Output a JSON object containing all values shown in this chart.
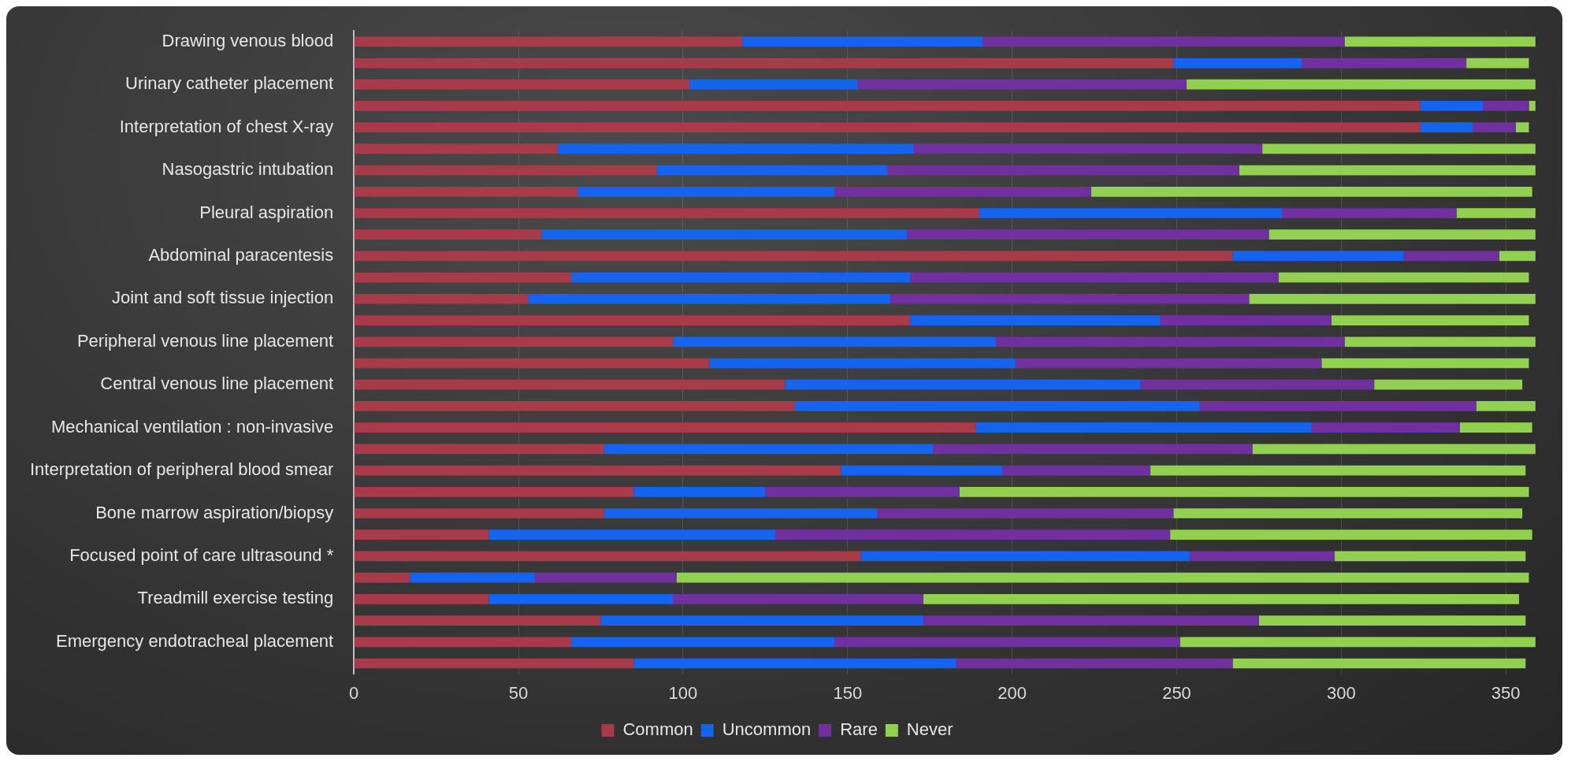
{
  "chart_data": {
    "type": "bar",
    "orientation": "horizontal",
    "stacked": true,
    "categories": [
      "Drawing venous blood",
      null,
      "Urinary catheter placement",
      null,
      "Interpretation of chest X-ray",
      null,
      "Nasogastric intubation",
      null,
      "Pleural aspiration",
      null,
      "Abdominal paracentesis",
      null,
      "Joint and soft tissue injection",
      null,
      "Peripheral venous line placement",
      null,
      "Central venous line placement",
      null,
      "Mechanical ventilation : non-invasive",
      null,
      "Interpretation of peripheral blood smear",
      null,
      "Bone marrow aspiration/biopsy",
      null,
      "Focused point of care ultrasound *",
      null,
      "Treadmill exercise testing",
      null,
      "Emergency endotracheal placement",
      null
    ],
    "series": [
      {
        "name": "Common",
        "color": "#a93a4a",
        "values": [
          118,
          249,
          102,
          324,
          324,
          62,
          92,
          68,
          190,
          57,
          267,
          66,
          53,
          169,
          97,
          108,
          131,
          134,
          189,
          76,
          148,
          85,
          76,
          41,
          154,
          17,
          41,
          75,
          66,
          85
        ]
      },
      {
        "name": "Uncommon",
        "color": "#1464f0",
        "values": [
          73,
          39,
          51,
          19,
          16,
          108,
          70,
          78,
          92,
          111,
          52,
          103,
          110,
          76,
          98,
          93,
          108,
          123,
          102,
          100,
          49,
          40,
          83,
          87,
          100,
          38,
          56,
          98,
          80,
          98
        ]
      },
      {
        "name": "Rare",
        "color": "#7030a0",
        "values": [
          110,
          50,
          100,
          14,
          13,
          106,
          107,
          78,
          53,
          110,
          29,
          112,
          109,
          52,
          106,
          93,
          71,
          84,
          45,
          97,
          45,
          59,
          90,
          120,
          44,
          43,
          76,
          102,
          105,
          84
        ]
      },
      {
        "name": "Never",
        "color": "#92d050",
        "values": [
          58,
          19,
          106,
          2,
          4,
          83,
          90,
          134,
          24,
          81,
          11,
          76,
          87,
          60,
          58,
          63,
          45,
          18,
          22,
          86,
          114,
          173,
          106,
          110,
          58,
          259,
          181,
          81,
          108,
          89
        ]
      }
    ],
    "xlim": [
      0,
      360
    ],
    "xticks": [
      0,
      50,
      100,
      150,
      200,
      250,
      300,
      350
    ],
    "grid": "x",
    "legend": "bottom"
  }
}
